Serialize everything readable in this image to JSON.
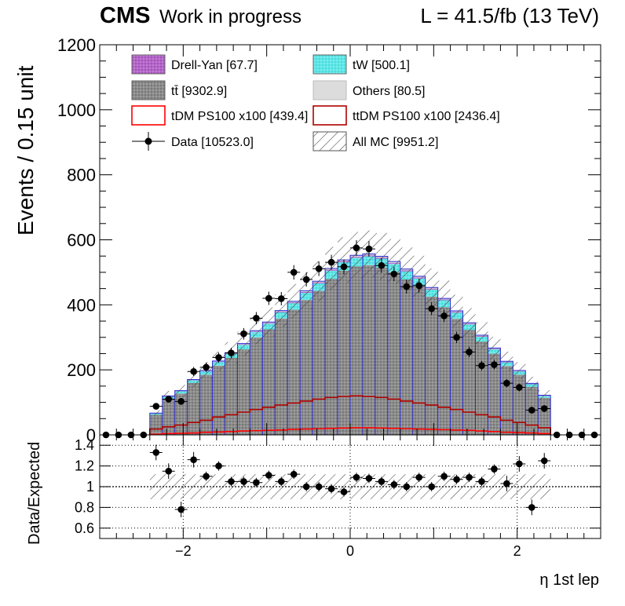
{
  "header": {
    "cms": "CMS",
    "work_in_progress": "Work in progress",
    "lumi": "L = 41.5/fb (13 TeV)"
  },
  "colors": {
    "drellyan": "#b566c9",
    "tw": "#5ee6e6",
    "ttbar": "#8a8a8a",
    "others": "#dcdcdc",
    "tdm": "#ff0000",
    "ttdm": "#b00000",
    "mc_edge": "#2b2bd6"
  },
  "chart_data": [
    {
      "type": "bar",
      "stacked": true,
      "title": "",
      "xlabel": "η 1st lep",
      "ylabel": "Events / 0.15 unit",
      "xlim": [
        -3.0,
        3.0
      ],
      "ylim": [
        0,
        1200
      ],
      "y_ticks": [
        0,
        200,
        400,
        600,
        800,
        1000,
        1200
      ],
      "x_ticks": [
        -2,
        0,
        2
      ],
      "x_tick_labels": [
        "−2",
        "0",
        "2"
      ],
      "bin_edges": [
        -3.0,
        -2.85,
        -2.7,
        -2.55,
        -2.4,
        -2.25,
        -2.1,
        -1.95,
        -1.8,
        -1.65,
        -1.5,
        -1.35,
        -1.2,
        -1.05,
        -0.9,
        -0.75,
        -0.6,
        -0.45,
        -0.3,
        -0.15,
        0.0,
        0.15,
        0.3,
        0.45,
        0.6,
        0.75,
        0.9,
        1.05,
        1.2,
        1.35,
        1.5,
        1.65,
        1.8,
        1.95,
        2.1,
        2.25,
        2.4,
        2.55,
        2.7,
        2.85,
        3.0
      ],
      "legend_position": "top",
      "legend": [
        {
          "key": "drellyan",
          "label": "Drell-Yan [67.7]",
          "style": "fill"
        },
        {
          "key": "tw",
          "label": "tW [500.1]",
          "style": "fill"
        },
        {
          "key": "ttbar",
          "label": "tt̄ [9302.9]",
          "style": "fill"
        },
        {
          "key": "others",
          "label": "Others [80.5]",
          "style": "fill"
        },
        {
          "key": "tdm",
          "label": "tDM PS100 x100 [439.4]",
          "style": "line"
        },
        {
          "key": "ttdm",
          "label": "ttDM PS100 x100 [2436.4]",
          "style": "line"
        },
        {
          "key": "data",
          "label": "Data [10523.0]",
          "style": "marker"
        },
        {
          "key": "allmc",
          "label": "All MC [9951.2]",
          "style": "hatch"
        }
      ],
      "series": [
        {
          "name": "tt̄ [9302.9]",
          "key": "ttbar",
          "values": [
            0,
            0,
            0,
            0,
            62,
            112,
            127,
            160,
            185,
            213,
            237,
            263,
            300,
            325,
            358,
            385,
            415,
            443,
            480,
            505,
            518,
            522,
            515,
            500,
            478,
            457,
            425,
            393,
            357,
            323,
            287,
            250,
            212,
            185,
            148,
            114,
            0,
            0,
            0,
            0
          ]
        },
        {
          "name": "tW [500.1]",
          "key": "tw",
          "values": [
            0,
            0,
            0,
            0,
            4,
            6,
            7,
            8,
            10,
            11,
            12,
            14,
            16,
            17,
            19,
            20,
            22,
            23,
            25,
            26,
            27,
            27,
            27,
            26,
            25,
            24,
            22,
            21,
            19,
            17,
            15,
            13,
            11,
            10,
            8,
            6,
            0,
            0,
            0,
            0
          ]
        },
        {
          "name": "Drell-Yan [67.7]",
          "key": "drellyan",
          "values": [
            0,
            0,
            0,
            0,
            0.5,
            0.8,
            1,
            1,
            1.3,
            1.5,
            1.6,
            1.8,
            2.1,
            2.3,
            2.5,
            2.7,
            2.9,
            3,
            3.2,
            3.3,
            3.4,
            3.4,
            3.4,
            3.3,
            3.2,
            3,
            2.9,
            2.7,
            2.5,
            2.3,
            2.1,
            1.8,
            1.5,
            1.3,
            1,
            0.8,
            0,
            0,
            0,
            0
          ]
        },
        {
          "name": "Others [80.5]",
          "key": "others",
          "values": [
            0,
            0,
            0,
            0,
            0.6,
            1,
            1.2,
            1.3,
            1.6,
            1.8,
            2,
            2.2,
            2.5,
            2.7,
            3,
            3.2,
            3.4,
            3.6,
            3.8,
            3.9,
            4,
            4,
            4,
            3.9,
            3.8,
            3.6,
            3.4,
            3.2,
            3,
            2.7,
            2.5,
            2.2,
            1.9,
            1.6,
            1.3,
            1,
            0,
            0,
            0,
            0
          ]
        },
        {
          "name": "tDM PS100 x100 [439.4]",
          "key": "tdm",
          "values": [
            0,
            0,
            0,
            0,
            2,
            4,
            5,
            6,
            8,
            9,
            10,
            12,
            13,
            14,
            15,
            17,
            18,
            19,
            20,
            21,
            22,
            22,
            21,
            20,
            19,
            18,
            17,
            16,
            15,
            14,
            12,
            10,
            8,
            7,
            6,
            4,
            0,
            0,
            0,
            0
          ]
        },
        {
          "name": "ttDM PS100 x100 [2436.4]",
          "key": "ttdm",
          "values": [
            0,
            0,
            0,
            0,
            18,
            25,
            30,
            38,
            45,
            55,
            62,
            70,
            78,
            85,
            92,
            98,
            104,
            110,
            115,
            118,
            120,
            118,
            115,
            110,
            104,
            98,
            92,
            85,
            78,
            70,
            62,
            55,
            45,
            38,
            30,
            22,
            0,
            0,
            0,
            0
          ]
        },
        {
          "name": "Data [10523.0]",
          "key": "data",
          "values": [
            0,
            0,
            0,
            0,
            88,
            110,
            103,
            195,
            208,
            238,
            252,
            311,
            359,
            420,
            419,
            500,
            478,
            511,
            531,
            517,
            575,
            572,
            521,
            495,
            456,
            459,
            388,
            366,
            300,
            255,
            213,
            216,
            159,
            146,
            76,
            81,
            0,
            0,
            0,
            0
          ]
        }
      ]
    },
    {
      "type": "scatter",
      "title": "",
      "xlabel": "",
      "ylabel": "Data/Expected",
      "xlim": [
        -3.0,
        3.0
      ],
      "ylim": [
        0.5,
        1.5
      ],
      "y_ticks": [
        0.6,
        0.8,
        1,
        1.2,
        1.4
      ],
      "y_tick_labels": [
        "0.6",
        "0.8",
        "1",
        "1.2",
        "1.4"
      ],
      "x": [
        -2.325,
        -2.175,
        -2.025,
        -1.875,
        -1.725,
        -1.575,
        -1.425,
        -1.275,
        -1.125,
        -0.975,
        -0.825,
        -0.675,
        -0.525,
        -0.375,
        -0.225,
        -0.075,
        0.075,
        0.225,
        0.375,
        0.525,
        0.675,
        0.825,
        0.975,
        1.125,
        1.275,
        1.425,
        1.575,
        1.725,
        1.875,
        2.025,
        2.175,
        2.325
      ],
      "values": [
        1.33,
        1.15,
        0.78,
        1.26,
        1.1,
        1.2,
        1.05,
        1.05,
        1.04,
        1.11,
        1.05,
        1.12,
        1.0,
        1.0,
        0.98,
        0.95,
        1.09,
        1.08,
        1.05,
        1.02,
        1.0,
        1.09,
        1.0,
        1.1,
        1.07,
        1.09,
        1.05,
        1.17,
        1.03,
        1.22,
        0.8,
        1.25
      ],
      "band_halfwidth": 0.12
    }
  ]
}
